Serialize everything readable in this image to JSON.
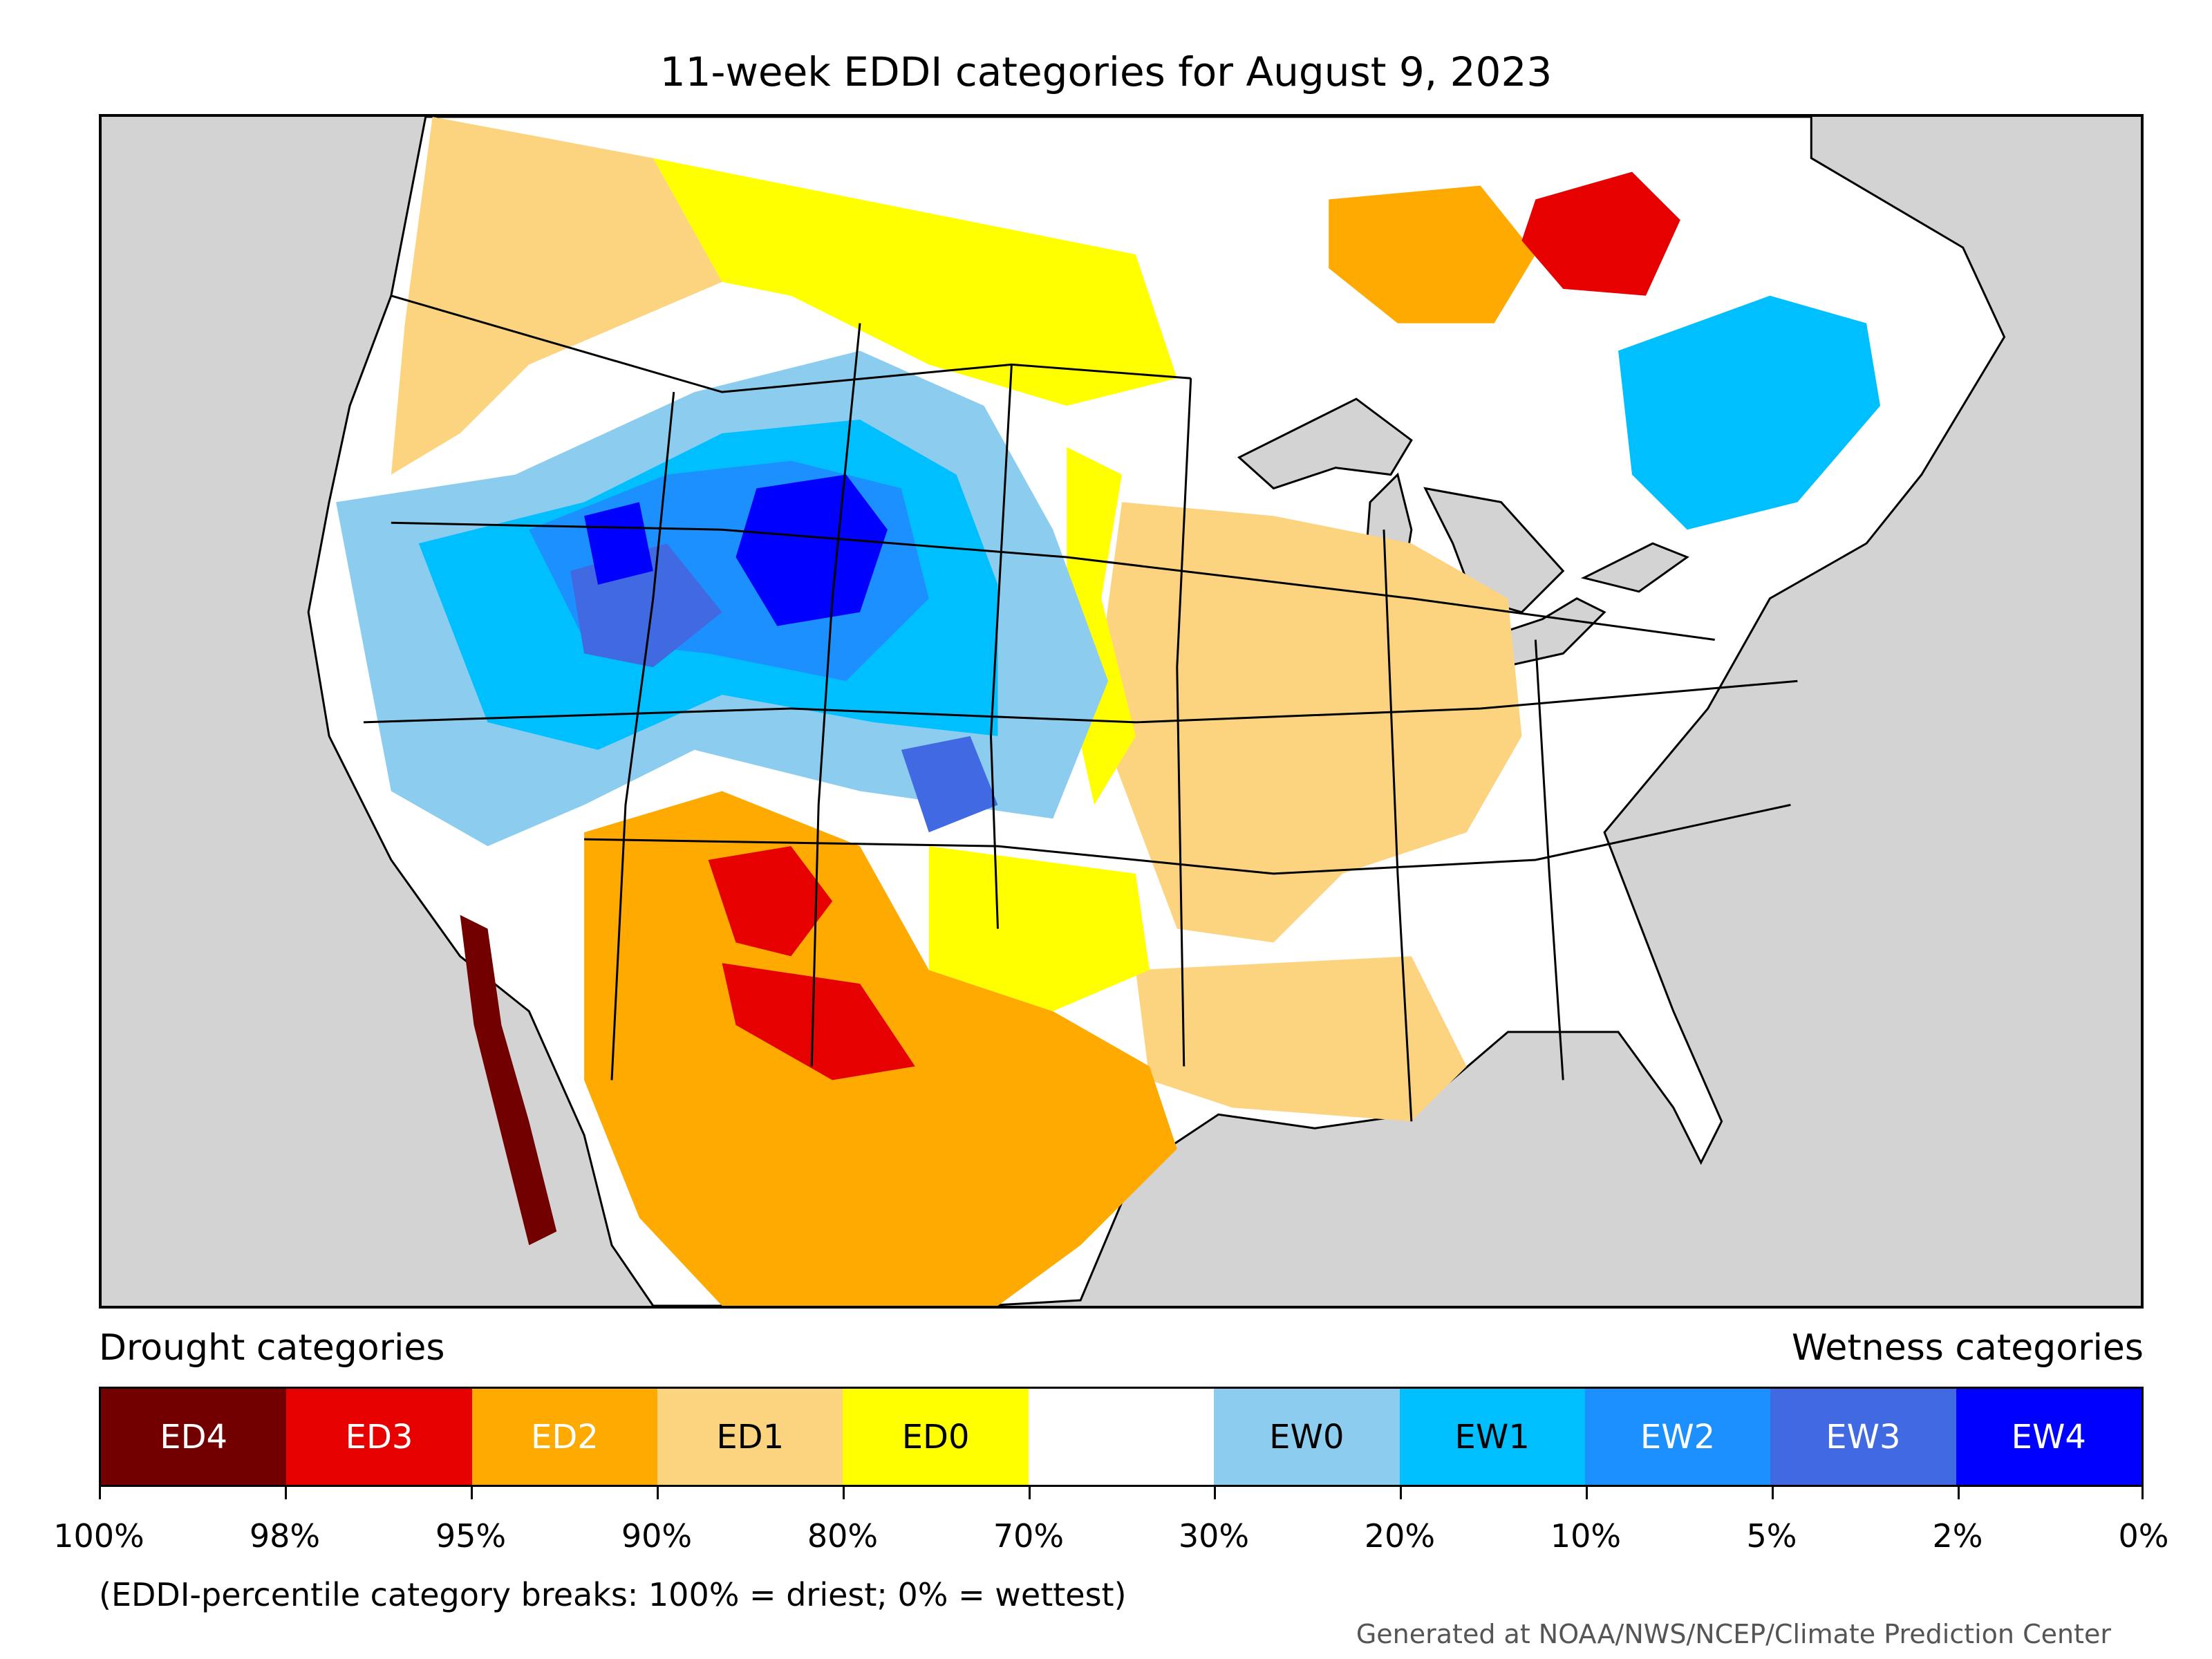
{
  "title": "11-week EDDI categories for August 9, 2023",
  "legend": {
    "drought_heading": "Drought categories",
    "wetness_heading": "Wetness categories",
    "categories": [
      {
        "label": "ED4",
        "color": "#730000",
        "text_color": "#ffffff"
      },
      {
        "label": "ED3",
        "color": "#e60000",
        "text_color": "#ffffff"
      },
      {
        "label": "ED2",
        "color": "#ffaa00",
        "text_color": "#ffffff"
      },
      {
        "label": "ED1",
        "color": "#fcd37f",
        "text_color": "#000000"
      },
      {
        "label": "ED0",
        "color": "#ffff00",
        "text_color": "#000000"
      },
      {
        "label": "",
        "color": "#ffffff",
        "text_color": "#000000"
      },
      {
        "label": "EW0",
        "color": "#8ccdef",
        "text_color": "#000000"
      },
      {
        "label": "EW1",
        "color": "#00bfff",
        "text_color": "#000000"
      },
      {
        "label": "EW2",
        "color": "#1d90ff",
        "text_color": "#ffffff"
      },
      {
        "label": "EW3",
        "color": "#4169e1",
        "text_color": "#ffffff"
      },
      {
        "label": "EW4",
        "color": "#0000ff",
        "text_color": "#ffffff"
      }
    ],
    "breaks": [
      "100%",
      "98%",
      "95%",
      "90%",
      "80%",
      "70%",
      "30%",
      "20%",
      "10%",
      "5%",
      "2%",
      "0%"
    ]
  },
  "note": "(EDDI-percentile category breaks: 100% = driest; 0% = wettest)",
  "credit": "Generated at NOAA/NWS/NCEP/Climate Prediction Center",
  "map": {
    "background_color": "#d3d3d3",
    "land_color": "#ffffff",
    "boundary_color": "#000000"
  }
}
